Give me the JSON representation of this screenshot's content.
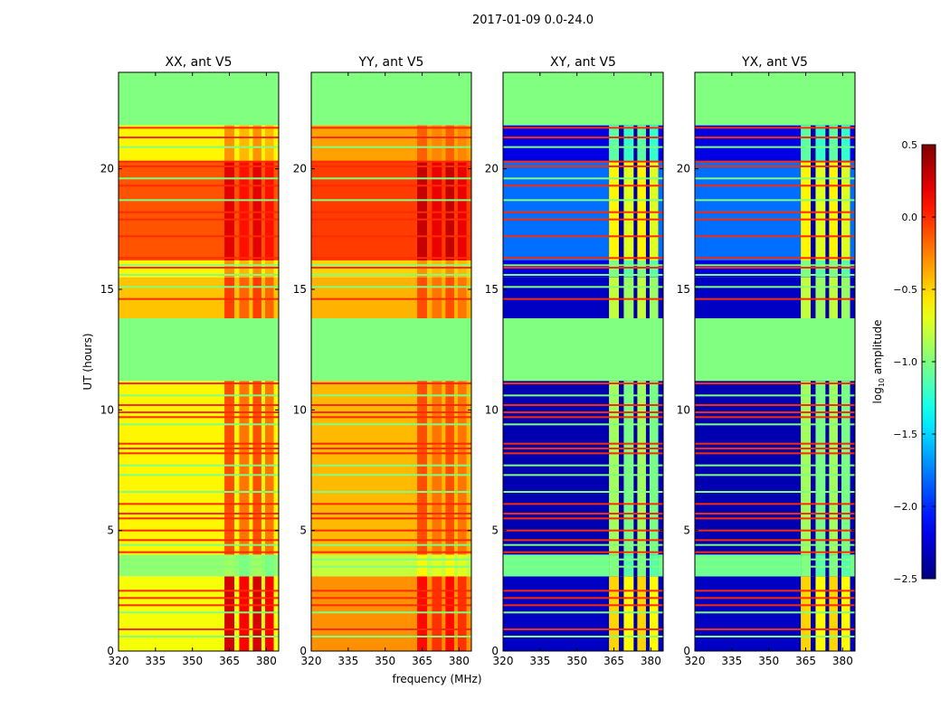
{
  "chart_data": {
    "type": "heatmap",
    "title": "2017-01-09 0.0-24.0",
    "xlabel": "frequency (MHz)",
    "ylabel": "UT (hours)",
    "xlim": [
      320,
      385
    ],
    "ylim": [
      0,
      24
    ],
    "xticks": [
      320,
      335,
      350,
      365,
      380
    ],
    "yticks": [
      0,
      5,
      10,
      15,
      20
    ],
    "colorbar": {
      "label": "log10 amplitude",
      "label_main": "log",
      "label_sub": "10",
      "label_rest": " amplitude",
      "range": [
        -2.5,
        0.5
      ],
      "ticks": [
        "0.5",
        "0.0",
        "−0.5",
        "−1.0",
        "−1.5",
        "−2.0",
        "−2.5"
      ],
      "tick_values": [
        0.5,
        0.0,
        -0.5,
        -1.0,
        -1.5,
        -2.0,
        -2.5
      ],
      "colormap": "jet"
    },
    "flagged_value": -1.0,
    "flagged_ranges": [
      [
        11.2,
        13.8
      ],
      [
        21.8,
        24.0
      ]
    ],
    "rfi_columns_mhz": [
      [
        363,
        367
      ],
      [
        369,
        373
      ],
      [
        374.5,
        378
      ],
      [
        379.5,
        383
      ]
    ],
    "red_lines_hours": [
      21.7,
      21.3,
      20.3,
      20.1,
      19.3,
      18.2,
      17.9,
      17.2,
      16.3,
      15.9,
      14.6,
      11.1,
      10.2,
      9.9,
      9.7,
      8.6,
      8.4,
      8.2,
      6.1,
      5.7,
      5.5,
      5.0,
      4.6,
      4.1,
      2.5,
      2.2,
      1.9,
      0.9
    ],
    "green_lines_hours": [
      20.9,
      19.6,
      18.7,
      16.0,
      15.6,
      15.1,
      10.6,
      9.4,
      7.7,
      7.3,
      6.6,
      4.4,
      3.8,
      3.5,
      1.6,
      0.6
    ],
    "panels": [
      {
        "title": "XX, ant V5",
        "bands": [
          [
            0,
            3.1,
            -0.65,
            0.25
          ],
          [
            3.1,
            4.0,
            -0.95,
            -0.9
          ],
          [
            4.0,
            11.2,
            -0.6,
            -0.1
          ],
          [
            13.8,
            15.5,
            -0.45,
            -0.05
          ],
          [
            15.5,
            16.2,
            -0.6,
            -0.3
          ],
          [
            16.2,
            20.3,
            -0.12,
            0.2
          ],
          [
            20.3,
            21.8,
            -0.6,
            -0.3
          ]
        ]
      },
      {
        "title": "YY, ant V5",
        "bands": [
          [
            0,
            3.1,
            -0.3,
            0.1
          ],
          [
            3.1,
            4.0,
            -0.8,
            -0.6
          ],
          [
            4.0,
            11.2,
            -0.42,
            -0.1
          ],
          [
            13.8,
            15.5,
            -0.4,
            -0.1
          ],
          [
            15.5,
            16.2,
            -0.5,
            -0.3
          ],
          [
            16.2,
            20.3,
            -0.05,
            0.3
          ],
          [
            20.3,
            21.8,
            -0.35,
            -0.15
          ]
        ]
      },
      {
        "title": "XY, ant V5",
        "bands": [
          [
            0,
            3.1,
            -2.3,
            -0.5
          ],
          [
            3.1,
            4.0,
            -1.05,
            -1.0
          ],
          [
            4.0,
            11.2,
            -2.35,
            -0.9
          ],
          [
            13.8,
            15.5,
            -2.3,
            -0.8
          ],
          [
            15.5,
            16.2,
            -2.2,
            -1.0
          ],
          [
            16.2,
            20.3,
            -1.8,
            -0.6
          ],
          [
            20.3,
            21.8,
            -2.2,
            -1.1
          ]
        ]
      },
      {
        "title": "YX, ant V5",
        "bands": [
          [
            0,
            3.1,
            -2.3,
            -0.5
          ],
          [
            3.1,
            4.0,
            -1.05,
            -1.0
          ],
          [
            4.0,
            11.2,
            -2.35,
            -0.9
          ],
          [
            13.8,
            15.5,
            -2.3,
            -0.8
          ],
          [
            15.5,
            16.2,
            -2.2,
            -1.0
          ],
          [
            16.2,
            20.3,
            -1.8,
            -0.6
          ],
          [
            20.3,
            21.8,
            -2.2,
            -1.1
          ]
        ]
      }
    ]
  }
}
